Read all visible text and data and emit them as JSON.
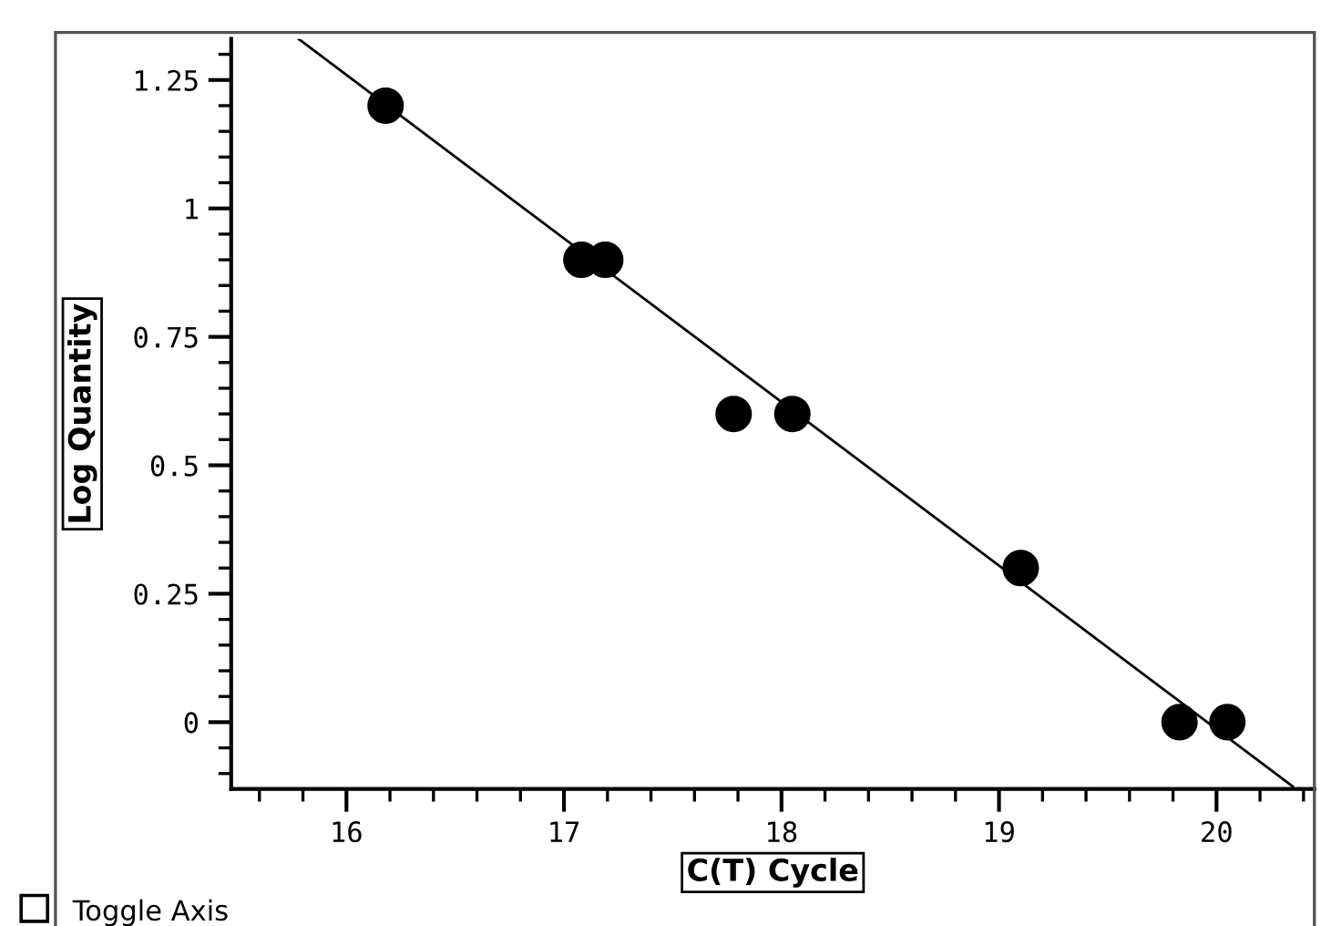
{
  "chart_data": {
    "type": "scatter",
    "xlabel": "C(T) Cycle",
    "ylabel": "Log Quantity",
    "xlim": [
      15.47,
      20.45
    ],
    "ylim": [
      -0.13,
      1.33
    ],
    "xticks": [
      16,
      17,
      18,
      19,
      20
    ],
    "yticks": [
      0,
      0.25,
      0.5,
      0.75,
      1,
      1.25
    ],
    "grid": false,
    "legend": false,
    "annotations": [
      "Toggle Axis"
    ],
    "series": [
      {
        "marker": "circle",
        "color": "#000000",
        "x": [
          16.18,
          17.08,
          17.19,
          17.78,
          18.05,
          19.1,
          19.83,
          20.05
        ],
        "values": [
          1.2,
          0.9,
          0.9,
          0.6,
          0.6,
          0.3,
          0,
          0
        ]
      },
      {
        "type": "line",
        "color": "#000000",
        "line_style": "solid",
        "marker": "none",
        "x": [
          15.78,
          20.35
        ],
        "values": [
          1.33,
          -0.125
        ]
      }
    ]
  }
}
